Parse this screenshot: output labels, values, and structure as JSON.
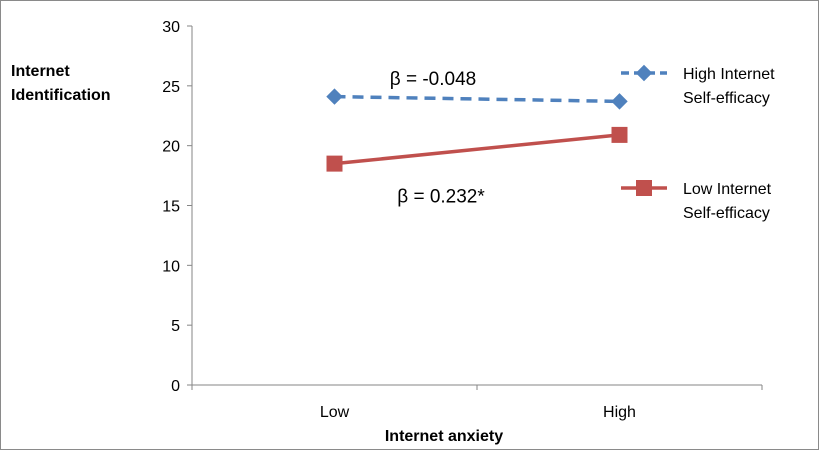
{
  "chart_data": {
    "type": "line",
    "categories": [
      "Low",
      "High"
    ],
    "xlabel": "Internet anxiety",
    "ylabel_lines": [
      "Internet",
      "Identification"
    ],
    "ylim": [
      0,
      30
    ],
    "yticks": [
      0,
      5,
      10,
      15,
      20,
      25,
      30
    ],
    "grid": false,
    "legend_position": "right",
    "series": [
      {
        "legend_lines": [
          "High Internet",
          "Self-efficacy"
        ],
        "values": [
          24.1,
          23.7
        ],
        "color": "#4F81BD",
        "line_style": "dashed",
        "marker": "diamond"
      },
      {
        "legend_lines": [
          "Low Internet",
          "Self-efficacy"
        ],
        "values": [
          18.5,
          20.9
        ],
        "color": "#C0504D",
        "line_style": "solid",
        "marker": "square"
      }
    ],
    "annotations": [
      {
        "text": "β = -0.048",
        "series_index": 0
      },
      {
        "text": "β = 0.232*",
        "series_index": 1
      }
    ]
  }
}
